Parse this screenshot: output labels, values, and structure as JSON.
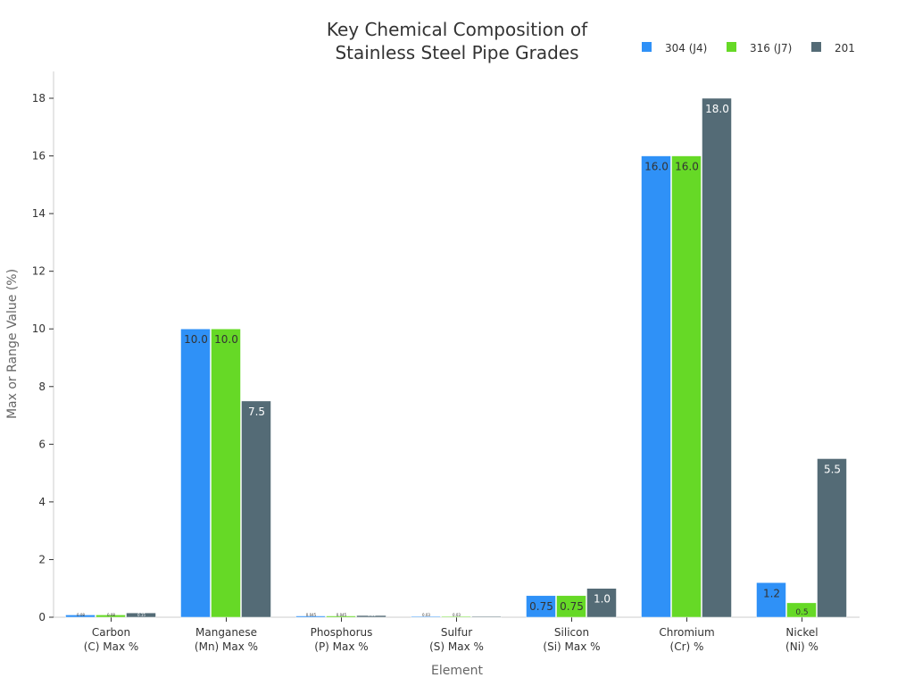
{
  "chart_data": {
    "type": "bar",
    "title": "Key Chemical Composition of\nStainless Steel Pipe Grades",
    "title_lines": [
      "Key Chemical Composition of",
      "Stainless Steel Pipe Grades"
    ],
    "xlabel": "Element",
    "ylabel": "Max or Range Value (%)",
    "ylim": [
      0,
      18.9
    ],
    "yticks": [
      0,
      2,
      4,
      6,
      8,
      10,
      12,
      14,
      16,
      18
    ],
    "grid": false,
    "legend": "top-right",
    "categories": [
      [
        "Carbon",
        "(C) Max %"
      ],
      [
        "Manganese",
        "(Mn) Max %"
      ],
      [
        "Phosphorus",
        "(P) Max %"
      ],
      [
        "Sulfur",
        "(S) Max %"
      ],
      [
        "Silicon",
        "(Si) Max %"
      ],
      [
        "Chromium",
        "(Cr) %"
      ],
      [
        "Nickel",
        "(Ni) %"
      ]
    ],
    "series": [
      {
        "name": "304 (J4)",
        "color": "#2f91f7",
        "values": [
          0.08,
          10.0,
          0.045,
          0.03,
          0.75,
          16.0,
          1.2
        ],
        "labels": [
          "0.08",
          "10.0",
          "0.045",
          "0.03",
          "0.75",
          "16.0",
          "1.2"
        ]
      },
      {
        "name": "316 (J7)",
        "color": "#66d926",
        "values": [
          0.08,
          10.0,
          0.045,
          0.03,
          0.75,
          16.0,
          0.5
        ],
        "labels": [
          "0.08",
          "10.0",
          "0.045",
          "0.03",
          "0.75",
          "16.0",
          "0.5"
        ]
      },
      {
        "name": "201",
        "color": "#546b76",
        "values": [
          0.15,
          7.5,
          0.06,
          0.03,
          1.0,
          18.0,
          5.5
        ],
        "labels": [
          "0.15",
          "7.5",
          "0.06",
          "0.03",
          "1.0",
          "18.0",
          "5.5"
        ]
      }
    ]
  }
}
